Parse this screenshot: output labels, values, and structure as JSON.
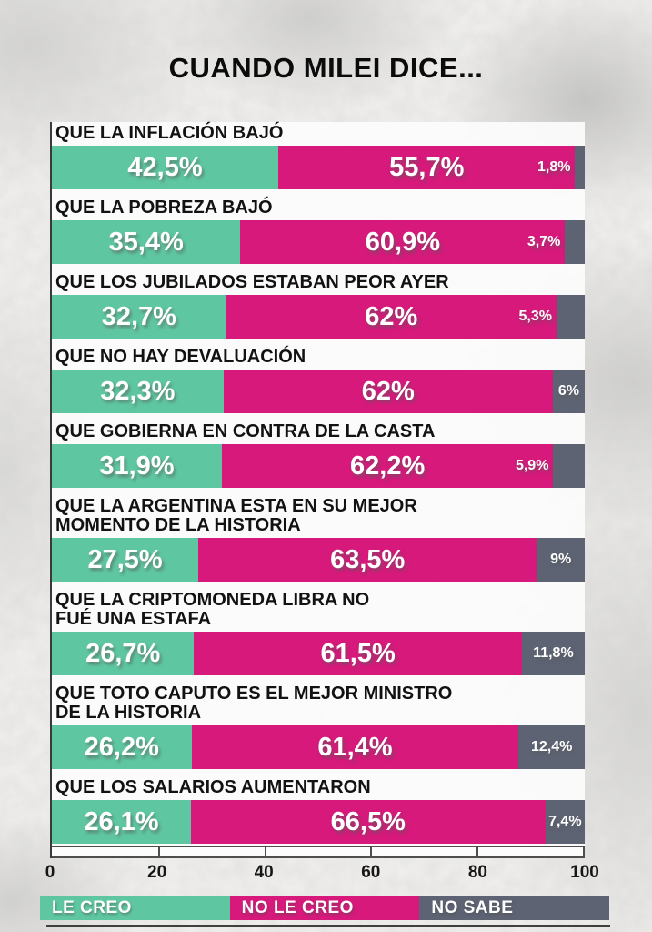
{
  "title": "CUANDO MILEI DICE...",
  "colors": {
    "le_creo": "#5ec7a1",
    "no_le_creo": "#d6197b",
    "no_sabe": "#5d6373"
  },
  "chart_data": {
    "type": "bar",
    "orientation": "horizontal",
    "stacked": true,
    "title": "CUANDO MILEI DICE...",
    "xlim": [
      0,
      100
    ],
    "x_ticks": [
      "0",
      "20",
      "40",
      "60",
      "80",
      "100"
    ],
    "legend_position": "bottom",
    "categories": [
      "QUE LA INFLACIÓN BAJÓ",
      "QUE LA POBREZA BAJÓ",
      "QUE LOS JUBILADOS ESTABAN PEOR AYER",
      "QUE NO HAY DEVALUACIÓN",
      "QUE GOBIERNA EN CONTRA DE LA CASTA",
      "QUE LA ARGENTINA ESTA EN SU MEJOR\nMOMENTO DE LA HISTORIA",
      "QUE LA CRIPTOMONEDA LIBRA NO\nFUÉ UNA ESTAFA",
      "QUE TOTO CAPUTO ES EL MEJOR MINISTRO\nDE LA HISTORIA",
      "QUE LOS SALARIOS AUMENTARON"
    ],
    "series": [
      {
        "name": "LE CREO",
        "color": "#5ec7a1",
        "values": [
          42.5,
          35.4,
          32.7,
          32.3,
          31.9,
          27.5,
          26.7,
          26.2,
          26.1
        ],
        "labels": [
          "42,5%",
          "35,4%",
          "32,7%",
          "32,3%",
          "31,9%",
          "27,5%",
          "26,7%",
          "26,2%",
          "26,1%"
        ]
      },
      {
        "name": "NO LE CREO",
        "color": "#d6197b",
        "values": [
          55.7,
          60.9,
          62,
          62,
          62.2,
          63.5,
          61.5,
          61.4,
          66.5
        ],
        "labels": [
          "55,7%",
          "60,9%",
          "62%",
          "62%",
          "62,2%",
          "63,5%",
          "61,5%",
          "61,4%",
          "66,5%"
        ]
      },
      {
        "name": "NO SABE",
        "color": "#5d6373",
        "values": [
          1.8,
          3.7,
          5.3,
          6,
          5.9,
          9,
          11.8,
          12.4,
          7.4
        ],
        "labels": [
          "1,8%",
          "3,7%",
          "5,3%",
          "6%",
          "5,9%",
          "9%",
          "11,8%",
          "12,4%",
          "7,4%"
        ]
      }
    ]
  }
}
